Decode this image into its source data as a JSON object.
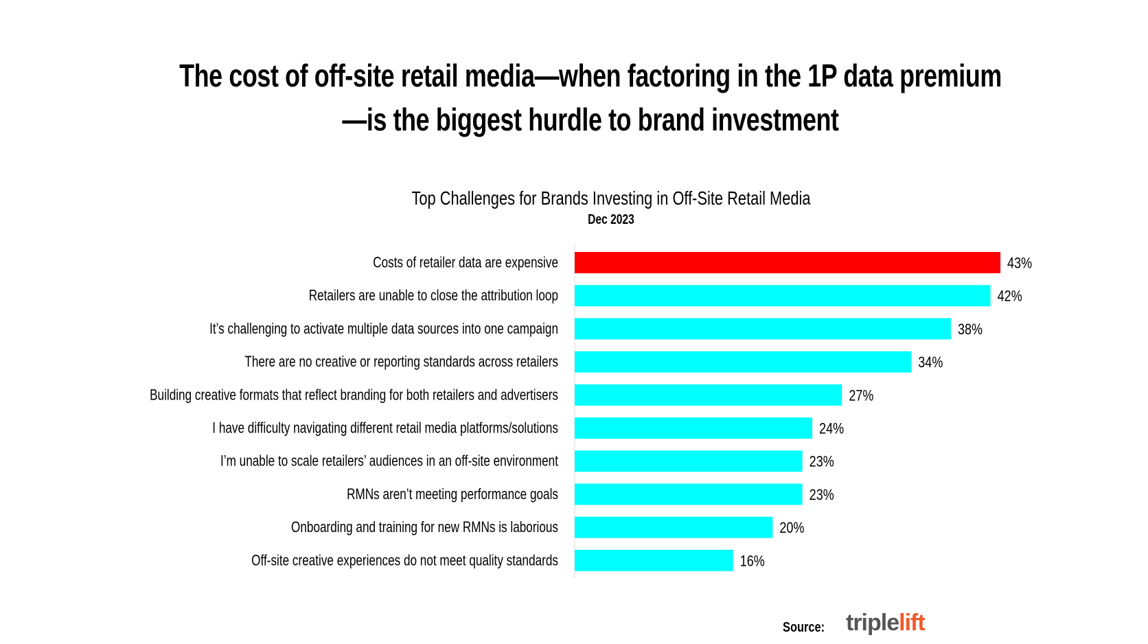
{
  "headline": "The cost of off-site retail media—when factoring in the 1P data premium—is the biggest hurdle to brand investment",
  "source_label": "Source:",
  "logo": {
    "part1": "triple",
    "part2": "lift"
  },
  "colors": {
    "highlight": "#ff0000",
    "bar": "#00ffff",
    "text": "#000000"
  },
  "chart_data": {
    "type": "bar",
    "orientation": "horizontal",
    "title": "Top Challenges for Brands Investing in Off-Site Retail Media",
    "subtitle": "Dec 2023",
    "xlim": [
      0,
      45
    ],
    "grid": false,
    "categories": [
      "Costs of retailer data are expensive",
      "Retailers are unable to close the attribution loop",
      "It’s challenging to activate multiple data sources into one campaign",
      "There are no creative or reporting standards across retailers",
      "Building creative formats that reflect branding for both retailers and advertisers",
      "I have difficulty navigating different retail media platforms/solutions",
      "I’m unable to scale retailers’ audiences in an off-site environment",
      "RMNs aren’t meeting performance goals",
      "Onboarding and training for new RMNs is laborious",
      "Off-site creative experiences do not meet quality standards"
    ],
    "values": [
      43,
      42,
      38,
      34,
      27,
      24,
      23,
      23,
      20,
      16
    ],
    "value_labels": [
      "43%",
      "42%",
      "38%",
      "34%",
      "27%",
      "24%",
      "23%",
      "23%",
      "20%",
      "16%"
    ],
    "highlight_index": 0
  }
}
